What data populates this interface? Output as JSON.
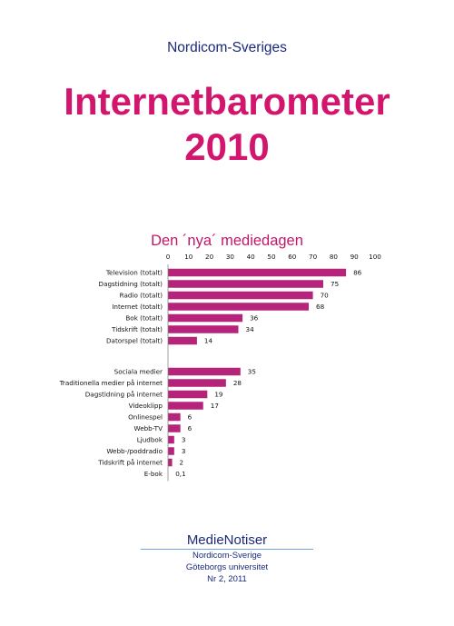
{
  "header": {
    "publisher": "Nordicom-Sveriges",
    "title_line1": "Internetbarometer",
    "title_line2": "2010"
  },
  "chart_data": {
    "type": "bar",
    "orientation": "horizontal",
    "title": "Den ´nya´ mediedagen",
    "xlim": [
      0,
      100
    ],
    "x_ticks": [
      "0",
      "10",
      "20",
      "30",
      "40",
      "50",
      "60",
      "70",
      "80",
      "90",
      "100"
    ],
    "grid": false,
    "color": "#b5247a",
    "groups": [
      {
        "categories": [
          "Television (totalt)",
          "Dagstidning (totalt)",
          "Radio (totalt)",
          "Internet (totalt)",
          "Bok (totalt)",
          "Tidskrift (totalt)",
          "Datorspel (totalt)"
        ],
        "values": [
          86,
          75,
          70,
          68,
          36,
          34,
          14
        ],
        "labels": [
          "86",
          "75",
          "70",
          "68",
          "36",
          "34",
          "14"
        ]
      },
      {
        "categories": [
          "Sociala medier",
          "Traditionella medier på internet",
          "Dagstidning på internet",
          "Videoklipp",
          "Onlinespel",
          "Webb-TV",
          "Ljudbok",
          "Webb-/poddradio",
          "Tidskrift på internet",
          "E-bok"
        ],
        "values": [
          35,
          28,
          19,
          17,
          6,
          6,
          3,
          3,
          2,
          0.1
        ],
        "labels": [
          "35",
          "28",
          "19",
          "17",
          "6",
          "6",
          "3",
          "3",
          "2",
          "0,1"
        ]
      }
    ]
  },
  "footer": {
    "brand": "MedieNotiser",
    "line1": "Nordicom-Sverige",
    "line2": "Göteborgs universitet",
    "line3": "Nr 2, 2011"
  }
}
